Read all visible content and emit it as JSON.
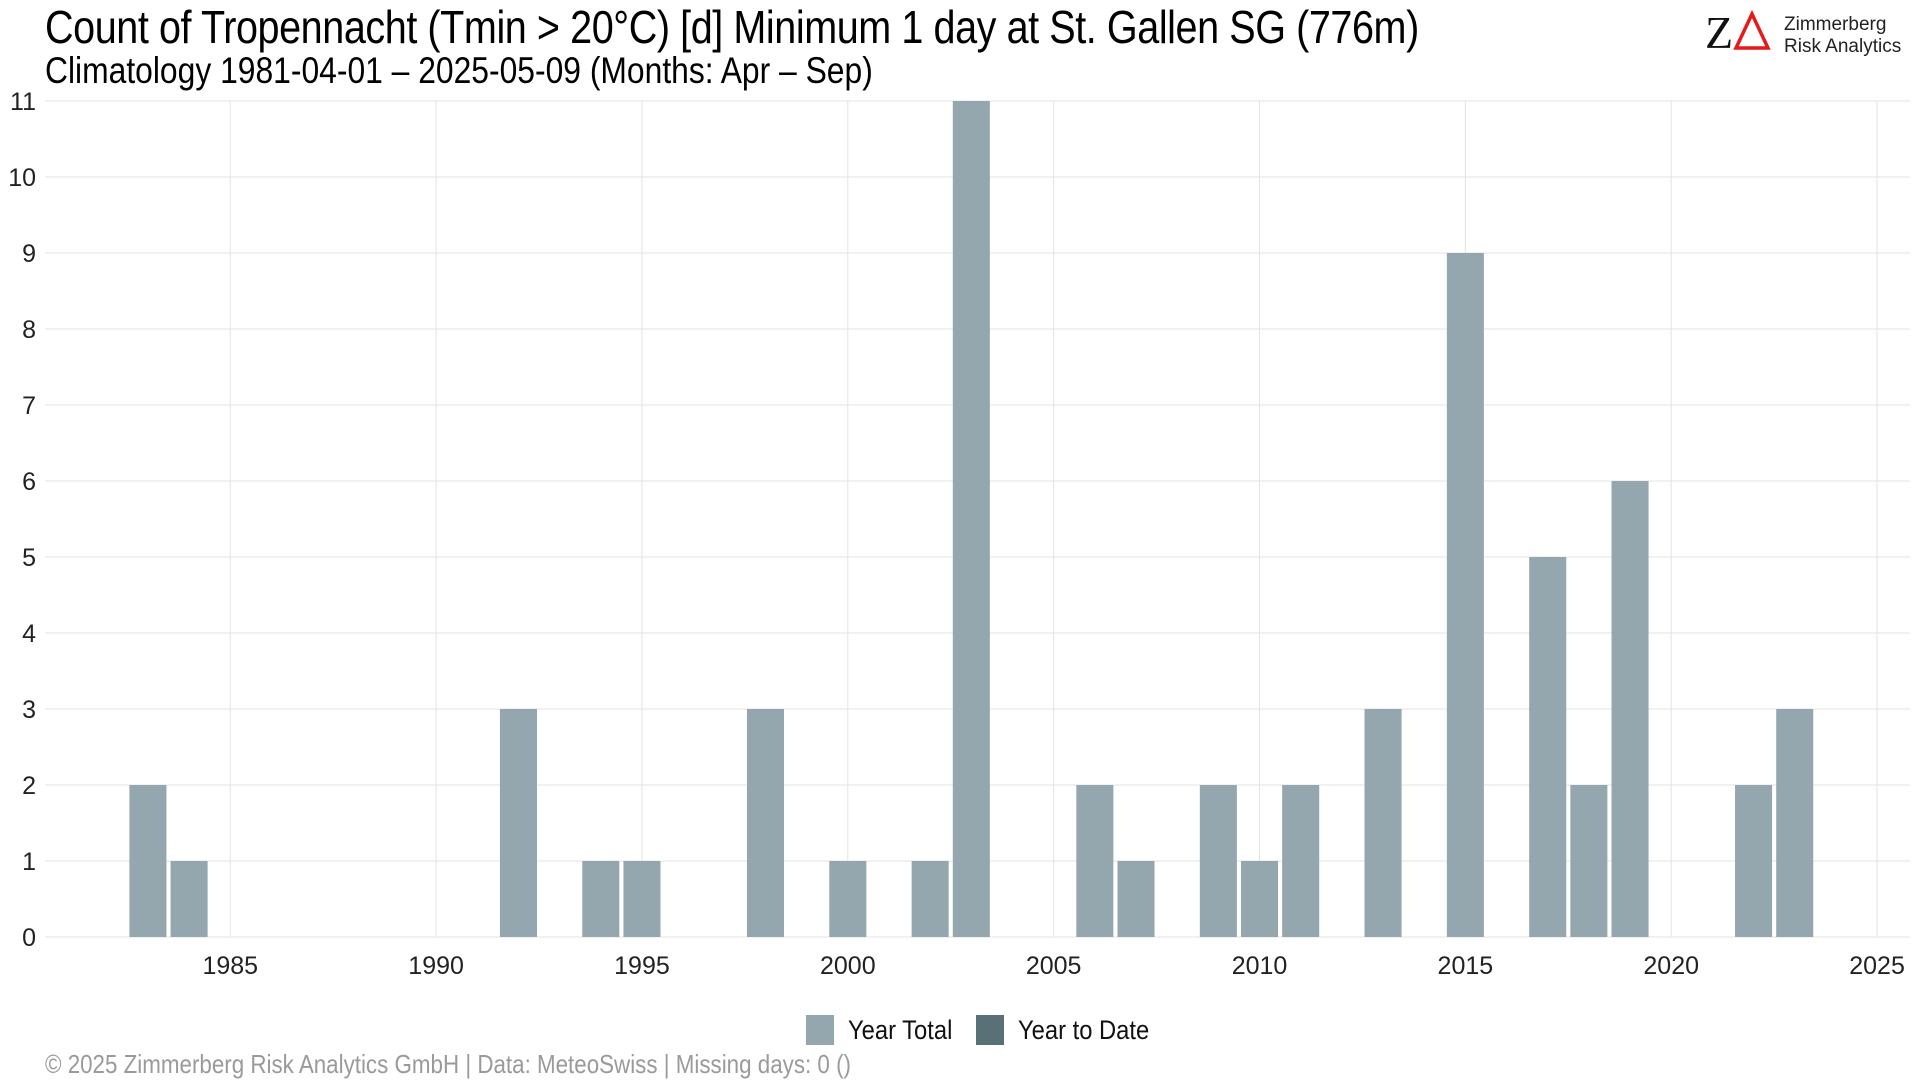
{
  "header": {
    "title": "Count of Tropennacht (Tmin > 20°C) [d] Minimum 1 day at St. Gallen  SG (776m)",
    "subtitle": "Climatology 1981-04-01 – 2025-05-09 (Months: Apr – Sep)"
  },
  "logo": {
    "line1": "Zimmerberg",
    "line2": "Risk Analytics"
  },
  "legend": {
    "items": [
      {
        "label": "Year Total",
        "color": "#95a7ae"
      },
      {
        "label": "Year to Date",
        "color": "#5a7077"
      }
    ]
  },
  "footer": {
    "text": "©  2025 Zimmerberg Risk Analytics GmbH | Data: MeteoSwiss | Missing days: 0 ()"
  },
  "chart_data": {
    "type": "bar",
    "xlim": [
      1980.5,
      2025.8
    ],
    "ylim": [
      0,
      11
    ],
    "x_ticks": [
      1985,
      1990,
      1995,
      2000,
      2005,
      2010,
      2015,
      2020,
      2025
    ],
    "y_ticks": [
      0,
      1,
      2,
      3,
      4,
      5,
      6,
      7,
      8,
      9,
      10,
      11
    ],
    "grid": true,
    "legend_position": "bottom",
    "series": [
      {
        "name": "Year Total",
        "color": "#95a7ae",
        "points": [
          {
            "x": 1983,
            "y": 2
          },
          {
            "x": 1984,
            "y": 1
          },
          {
            "x": 1992,
            "y": 3
          },
          {
            "x": 1994,
            "y": 1
          },
          {
            "x": 1995,
            "y": 1
          },
          {
            "x": 1998,
            "y": 3
          },
          {
            "x": 2000,
            "y": 1
          },
          {
            "x": 2002,
            "y": 1
          },
          {
            "x": 2003,
            "y": 11
          },
          {
            "x": 2006,
            "y": 2
          },
          {
            "x": 2007,
            "y": 1
          },
          {
            "x": 2009,
            "y": 2
          },
          {
            "x": 2010,
            "y": 1
          },
          {
            "x": 2011,
            "y": 2
          },
          {
            "x": 2013,
            "y": 3
          },
          {
            "x": 2015,
            "y": 9
          },
          {
            "x": 2017,
            "y": 5
          },
          {
            "x": 2018,
            "y": 2
          },
          {
            "x": 2019,
            "y": 6
          },
          {
            "x": 2022,
            "y": 2
          },
          {
            "x": 2023,
            "y": 3
          }
        ]
      },
      {
        "name": "Year to Date",
        "color": "#5a7077",
        "points": []
      }
    ]
  }
}
